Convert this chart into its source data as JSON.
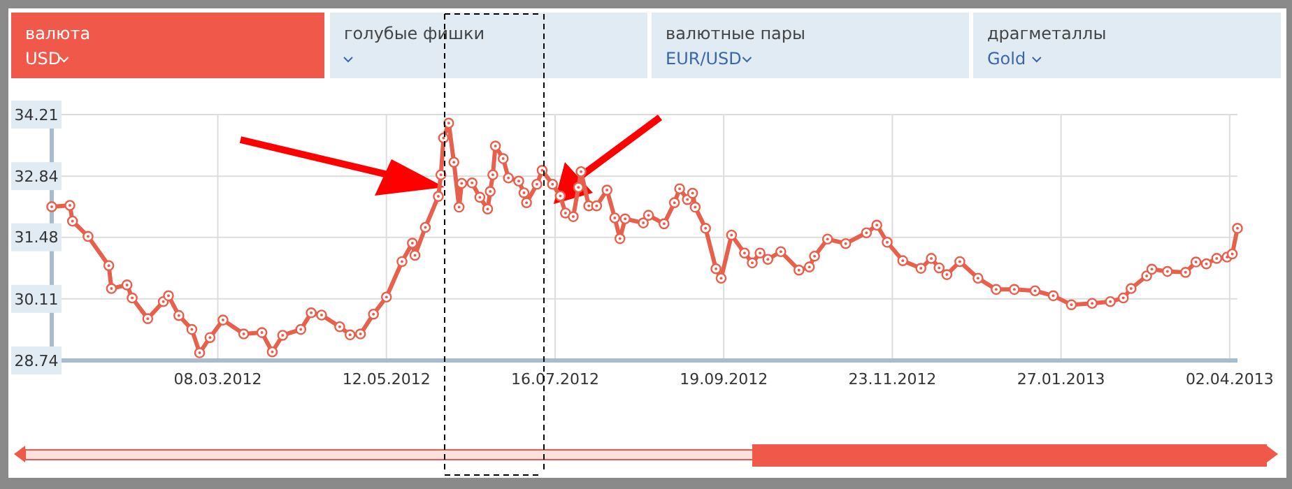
{
  "chart_data": {
    "type": "line",
    "marker": "circle",
    "grid": true,
    "annotations": [
      "валюта",
      "USD",
      "голубые фишки",
      "валютные пары",
      "EUR/USD",
      "драгметаллы",
      "Gold"
    ],
    "xlim": [
      "2012-01-04",
      "2013-04-05"
    ],
    "xticks": [
      {
        "value": "2012-03-08",
        "label": "08.03.2012"
      },
      {
        "value": "2012-05-12",
        "label": "12.05.2012"
      },
      {
        "value": "2012-07-16",
        "label": "16.07.2012"
      },
      {
        "value": "2012-09-19",
        "label": "19.09.2012"
      },
      {
        "value": "2012-11-23",
        "label": "23.11.2012"
      },
      {
        "value": "2013-01-27",
        "label": "27.01.2013"
      },
      {
        "value": "2013-04-02",
        "label": "02.04.2013"
      }
    ],
    "ylim": [
      28.74,
      34.21
    ],
    "yticks": [
      28.74,
      30.11,
      31.48,
      32.84,
      34.21
    ],
    "series": [
      {
        "color": "#e8604c",
        "x": [
          "2012-01-04",
          "2012-01-11",
          "2012-01-12",
          "2012-01-18",
          "2012-01-26",
          "2012-01-27",
          "2012-02-02",
          "2012-02-04",
          "2012-02-10",
          "2012-02-16",
          "2012-02-18",
          "2012-02-22",
          "2012-02-27",
          "2012-03-01",
          "2012-03-05",
          "2012-03-10",
          "2012-03-18",
          "2012-03-25",
          "2012-03-29",
          "2012-04-02",
          "2012-04-09",
          "2012-04-13",
          "2012-04-17",
          "2012-04-24",
          "2012-04-28",
          "2012-05-02",
          "2012-05-07",
          "2012-05-12",
          "2012-05-18",
          "2012-05-22",
          "2012-05-23",
          "2012-05-27",
          "2012-06-01",
          "2012-06-02",
          "2012-06-03",
          "2012-06-05",
          "2012-06-07",
          "2012-06-09",
          "2012-06-10",
          "2012-06-14",
          "2012-06-17",
          "2012-06-20",
          "2012-06-21",
          "2012-06-22",
          "2012-06-23",
          "2012-06-26",
          "2012-06-28",
          "2012-07-02",
          "2012-07-04",
          "2012-07-05",
          "2012-07-09",
          "2012-07-11",
          "2012-07-15",
          "2012-07-18",
          "2012-07-20",
          "2012-07-23",
          "2012-07-25",
          "2012-07-26",
          "2012-07-29",
          "2012-08-01",
          "2012-08-05",
          "2012-08-08",
          "2012-08-10",
          "2012-08-12",
          "2012-08-19",
          "2012-08-21",
          "2012-08-27",
          "2012-08-31",
          "2012-09-02",
          "2012-09-05",
          "2012-09-07",
          "2012-09-08",
          "2012-09-12",
          "2012-09-16",
          "2012-09-18",
          "2012-09-22",
          "2012-09-27",
          "2012-09-30",
          "2012-10-03",
          "2012-10-06",
          "2012-10-11",
          "2012-10-18",
          "2012-10-22",
          "2012-10-24",
          "2012-10-29",
          "2012-11-05",
          "2012-11-13",
          "2012-11-17",
          "2012-11-21",
          "2012-11-27",
          "2012-12-04",
          "2012-12-08",
          "2012-12-11",
          "2012-12-14",
          "2012-12-19",
          "2012-12-26",
          "2013-01-02",
          "2013-01-09",
          "2013-01-17",
          "2013-01-24",
          "2013-01-31",
          "2013-02-08",
          "2013-02-15",
          "2013-02-20",
          "2013-02-23",
          "2013-03-01",
          "2013-03-03",
          "2013-03-09",
          "2013-03-16",
          "2013-03-20",
          "2013-03-24",
          "2013-03-28",
          "2013-04-01",
          "2013-04-03",
          "2013-04-05"
        ],
        "values": [
          32.16,
          32.19,
          31.84,
          31.5,
          30.85,
          30.34,
          30.42,
          30.13,
          29.67,
          30.05,
          30.18,
          29.74,
          29.43,
          28.91,
          29.25,
          29.64,
          29.33,
          29.36,
          28.93,
          29.3,
          29.43,
          29.8,
          29.75,
          29.49,
          29.31,
          29.33,
          29.77,
          30.15,
          30.94,
          31.35,
          31.08,
          31.7,
          32.39,
          32.87,
          33.69,
          34.02,
          33.15,
          32.15,
          32.68,
          32.69,
          32.37,
          32.11,
          32.5,
          32.87,
          33.51,
          33.23,
          32.8,
          32.73,
          32.47,
          32.25,
          32.66,
          32.97,
          32.66,
          32.4,
          32.02,
          31.94,
          32.59,
          32.94,
          32.18,
          32.18,
          32.53,
          31.91,
          31.45,
          31.89,
          31.8,
          31.97,
          31.78,
          32.25,
          32.56,
          32.32,
          32.46,
          32.15,
          31.68,
          30.78,
          30.57,
          31.53,
          31.13,
          30.91,
          31.13,
          30.99,
          31.16,
          30.75,
          30.82,
          31.06,
          31.44,
          31.34,
          31.58,
          31.75,
          31.37,
          30.96,
          30.79,
          31.01,
          30.8,
          30.65,
          30.94,
          30.57,
          30.32,
          30.32,
          30.29,
          30.18,
          29.98,
          30.01,
          30.05,
          30.13,
          30.34,
          30.62,
          30.77,
          30.72,
          30.7,
          30.93,
          30.89,
          31.01,
          31.04,
          31.11,
          31.68
        ]
      }
    ]
  }
}
